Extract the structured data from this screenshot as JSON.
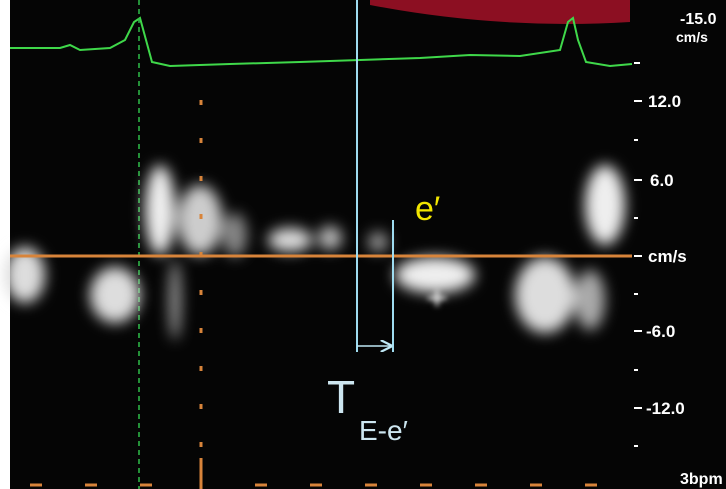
{
  "scale": {
    "top_value": "-15.0",
    "top_unit": "cm/s",
    "labels": [
      "12.0",
      "6.0",
      "cm/s",
      "-6.0",
      "-12.0"
    ]
  },
  "heart_rate": "3bpm",
  "annotations": {
    "e_prime": "e′",
    "interval_main": "T",
    "interval_sub": "E-e′"
  }
}
